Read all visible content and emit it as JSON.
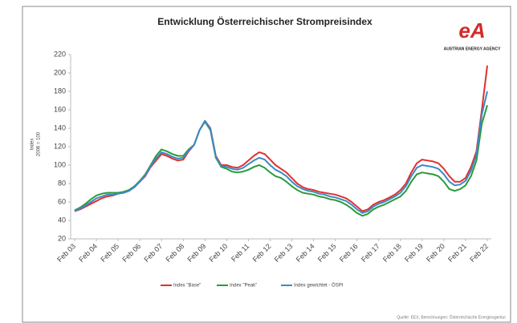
{
  "chart_data": {
    "type": "line",
    "title": "Entwicklung Österreichischer Strompreisindex",
    "ylabel": [
      "Index",
      "2006 = 100"
    ],
    "logo_mark": "eA",
    "logo_text": "AUSTRIAN ENERGY AGENCY",
    "source": "Quelle: EEX, Berechnungen: Österreichische Energieagentur",
    "categories": [
      "Feb 03",
      null,
      null,
      null,
      "Feb 04",
      null,
      null,
      null,
      "Feb 05",
      null,
      null,
      null,
      "Feb 06",
      null,
      null,
      null,
      "Feb 07",
      null,
      null,
      null,
      "Feb 08",
      null,
      null,
      null,
      "Feb 09",
      null,
      null,
      null,
      "Feb 10",
      null,
      null,
      null,
      "Feb 11",
      null,
      null,
      null,
      "Feb 12",
      null,
      null,
      null,
      "Feb 13",
      null,
      null,
      null,
      "Feb 14",
      null,
      null,
      null,
      "Feb 15",
      null,
      null,
      null,
      "Feb 16",
      null,
      null,
      null,
      "Feb 17",
      null,
      null,
      null,
      "Feb 18",
      null,
      null,
      null,
      "Feb 19",
      null,
      null,
      null,
      "Feb 20",
      null,
      null,
      null,
      "Feb 21",
      null,
      null,
      null,
      "Feb 22"
    ],
    "series": [
      {
        "name": "Index \"Base\"",
        "color": "#e03030",
        "values": [
          50,
          52,
          55,
          58,
          61,
          64,
          66,
          67,
          69,
          70,
          72,
          76,
          82,
          88,
          98,
          105,
          112,
          110,
          107,
          105,
          106,
          115,
          122,
          138,
          148,
          140,
          110,
          100,
          100,
          98,
          97,
          100,
          105,
          110,
          114,
          112,
          106,
          100,
          96,
          92,
          86,
          80,
          76,
          74,
          73,
          71,
          70,
          69,
          68,
          66,
          64,
          60,
          55,
          50,
          52,
          57,
          60,
          62,
          65,
          68,
          73,
          80,
          92,
          102,
          106,
          105,
          104,
          102,
          96,
          88,
          82,
          82,
          86,
          98,
          115,
          160,
          208
        ]
      },
      {
        "name": "Index \"Peak\"",
        "color": "#2a9a3a",
        "values": [
          51,
          54,
          58,
          63,
          67,
          69,
          70,
          70,
          70,
          71,
          73,
          77,
          83,
          90,
          100,
          110,
          117,
          115,
          112,
          110,
          110,
          117,
          122,
          138,
          147,
          138,
          108,
          98,
          96,
          93,
          92,
          93,
          95,
          98,
          100,
          97,
          92,
          88,
          86,
          82,
          77,
          73,
          70,
          69,
          68,
          66,
          65,
          63,
          62,
          60,
          57,
          53,
          48,
          45,
          47,
          52,
          55,
          57,
          60,
          63,
          66,
          72,
          82,
          90,
          92,
          91,
          90,
          88,
          82,
          74,
          72,
          74,
          78,
          88,
          105,
          145,
          165
        ]
      },
      {
        "name": "Index gewichtet - ÖSPI",
        "color": "#3a8ac8",
        "values": [
          50,
          53,
          56,
          60,
          64,
          66,
          68,
          68,
          69,
          70,
          72,
          76,
          82,
          89,
          99,
          107,
          114,
          112,
          109,
          107,
          108,
          116,
          122,
          138,
          148,
          139,
          109,
          99,
          98,
          96,
          95,
          97,
          101,
          105,
          108,
          106,
          100,
          95,
          92,
          88,
          82,
          77,
          74,
          72,
          71,
          69,
          68,
          66,
          65,
          63,
          61,
          57,
          52,
          48,
          50,
          55,
          58,
          60,
          63,
          66,
          70,
          77,
          88,
          97,
          100,
          99,
          98,
          96,
          90,
          82,
          78,
          79,
          83,
          94,
          111,
          155,
          180
        ]
      }
    ],
    "ylim": [
      20,
      220
    ],
    "yticks": [
      20,
      40,
      60,
      80,
      100,
      120,
      140,
      160,
      180,
      200,
      220
    ],
    "grid": false,
    "legend": "bottom"
  }
}
